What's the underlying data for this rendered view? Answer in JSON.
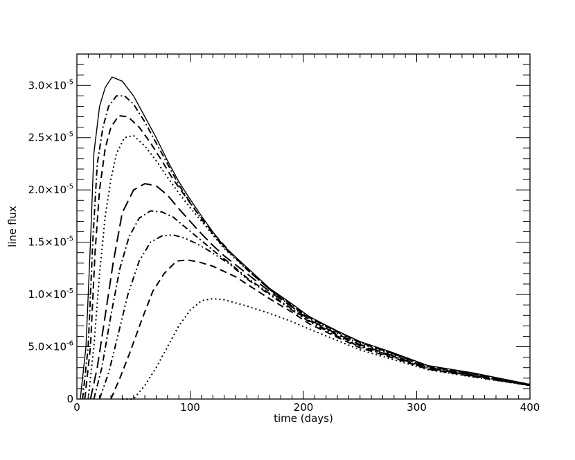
{
  "chart_data": {
    "type": "line",
    "title": "",
    "xlabel": "time (days)",
    "ylabel": "line flux",
    "xlim": [
      0,
      400
    ],
    "ylim": [
      0,
      3.3e-05
    ],
    "x_ticks": [
      "0",
      "100",
      "200",
      "300",
      "400"
    ],
    "y_ticks": [
      {
        "mantissa": "0",
        "exp": ""
      },
      {
        "mantissa": "5.0×10",
        "exp": "-6"
      },
      {
        "mantissa": "1.0×10",
        "exp": "-5"
      },
      {
        "mantissa": "1.5×10",
        "exp": "-5"
      },
      {
        "mantissa": "2.0×10",
        "exp": "-5"
      },
      {
        "mantissa": "2.5×10",
        "exp": "-5"
      },
      {
        "mantissa": "3.0×10",
        "exp": "-5"
      }
    ],
    "grid": false,
    "legend": "none",
    "line_color": "#000000",
    "series": [
      {
        "style": "solid",
        "points": [
          [
            3,
            0
          ],
          [
            8,
            5e-06
          ],
          [
            12,
            1.5e-05
          ],
          [
            15,
            2.35e-05
          ],
          [
            20,
            2.8e-05
          ],
          [
            25,
            2.98e-05
          ],
          [
            31,
            3.08e-05
          ],
          [
            40,
            3.04e-05
          ],
          [
            50,
            2.9e-05
          ],
          [
            60,
            2.7e-05
          ],
          [
            70,
            2.5e-05
          ],
          [
            80,
            2.28e-05
          ],
          [
            90,
            2.08e-05
          ],
          [
            100,
            1.91e-05
          ],
          [
            110,
            1.75e-05
          ],
          [
            120,
            1.6e-05
          ],
          [
            130,
            1.46e-05
          ],
          [
            150,
            1.26e-05
          ],
          [
            170,
            1.06e-05
          ],
          [
            190,
            9.1e-06
          ],
          [
            205,
            7.9e-06
          ],
          [
            230,
            6.5e-06
          ],
          [
            250,
            5.5e-06
          ],
          [
            280,
            4.4e-06
          ],
          [
            310,
            3.2e-06
          ],
          [
            350,
            2.5e-06
          ],
          [
            400,
            1.4e-06
          ]
        ]
      },
      {
        "style": "dashdot",
        "points": [
          [
            5,
            0
          ],
          [
            10,
            5e-06
          ],
          [
            14,
            1.5e-05
          ],
          [
            18,
            2.25e-05
          ],
          [
            23,
            2.6e-05
          ],
          [
            28,
            2.8e-05
          ],
          [
            35,
            2.9e-05
          ],
          [
            42,
            2.9e-05
          ],
          [
            50,
            2.82e-05
          ],
          [
            60,
            2.65e-05
          ],
          [
            70,
            2.45e-05
          ],
          [
            80,
            2.25e-05
          ],
          [
            90,
            2.05e-05
          ],
          [
            100,
            1.88e-05
          ],
          [
            110,
            1.72e-05
          ],
          [
            120,
            1.58e-05
          ],
          [
            130,
            1.45e-05
          ],
          [
            150,
            1.25e-05
          ],
          [
            170,
            1.05e-05
          ],
          [
            190,
            9e-06
          ],
          [
            205,
            7.8e-06
          ],
          [
            230,
            6.5e-06
          ],
          [
            250,
            5.4e-06
          ],
          [
            280,
            4.3e-06
          ],
          [
            310,
            3.15e-06
          ],
          [
            350,
            2.45e-06
          ],
          [
            400,
            1.4e-06
          ]
        ]
      },
      {
        "style": "dashed",
        "points": [
          [
            7,
            0
          ],
          [
            12,
            5e-06
          ],
          [
            16,
            1.4e-05
          ],
          [
            20,
            2e-05
          ],
          [
            25,
            2.4e-05
          ],
          [
            30,
            2.6e-05
          ],
          [
            37,
            2.71e-05
          ],
          [
            45,
            2.7e-05
          ],
          [
            55,
            2.6e-05
          ],
          [
            65,
            2.45e-05
          ],
          [
            75,
            2.28e-05
          ],
          [
            85,
            2.1e-05
          ],
          [
            95,
            1.95e-05
          ],
          [
            105,
            1.8e-05
          ],
          [
            115,
            1.66e-05
          ],
          [
            125,
            1.53e-05
          ],
          [
            135,
            1.41e-05
          ],
          [
            150,
            1.24e-05
          ],
          [
            170,
            1.05e-05
          ],
          [
            190,
            8.9e-06
          ],
          [
            205,
            7.8e-06
          ],
          [
            230,
            6.4e-06
          ],
          [
            250,
            5.4e-06
          ],
          [
            280,
            4.3e-06
          ],
          [
            310,
            3.1e-06
          ],
          [
            350,
            2.4e-06
          ],
          [
            400,
            1.35e-06
          ]
        ]
      },
      {
        "style": "dotted",
        "points": [
          [
            10,
            0
          ],
          [
            15,
            5e-06
          ],
          [
            20,
            1.2e-05
          ],
          [
            25,
            1.75e-05
          ],
          [
            30,
            2.1e-05
          ],
          [
            35,
            2.35e-05
          ],
          [
            42,
            2.5e-05
          ],
          [
            50,
            2.52e-05
          ],
          [
            60,
            2.42e-05
          ],
          [
            70,
            2.28e-05
          ],
          [
            80,
            2.12e-05
          ],
          [
            90,
            1.97e-05
          ],
          [
            100,
            1.83e-05
          ],
          [
            110,
            1.7e-05
          ],
          [
            120,
            1.57e-05
          ],
          [
            130,
            1.44e-05
          ],
          [
            150,
            1.24e-05
          ],
          [
            170,
            1.05e-05
          ],
          [
            190,
            8.8e-06
          ],
          [
            205,
            7.7e-06
          ],
          [
            230,
            6.3e-06
          ],
          [
            250,
            5.3e-06
          ],
          [
            280,
            4.2e-06
          ],
          [
            310,
            3.05e-06
          ],
          [
            350,
            2.35e-06
          ],
          [
            400,
            1.35e-06
          ]
        ]
      },
      {
        "style": "longdash",
        "points": [
          [
            12,
            0
          ],
          [
            18,
            3e-06
          ],
          [
            25,
            8e-06
          ],
          [
            32,
            1.3e-05
          ],
          [
            40,
            1.78e-05
          ],
          [
            50,
            2e-05
          ],
          [
            60,
            2.06e-05
          ],
          [
            70,
            2.04e-05
          ],
          [
            80,
            1.95e-05
          ],
          [
            90,
            1.82e-05
          ],
          [
            100,
            1.7e-05
          ],
          [
            110,
            1.58e-05
          ],
          [
            120,
            1.47e-05
          ],
          [
            130,
            1.37e-05
          ],
          [
            150,
            1.2e-05
          ],
          [
            170,
            1.03e-05
          ],
          [
            190,
            8.8e-06
          ],
          [
            205,
            7.6e-06
          ],
          [
            230,
            6.2e-06
          ],
          [
            250,
            5.2e-06
          ],
          [
            280,
            4.1e-06
          ],
          [
            310,
            3e-06
          ],
          [
            350,
            2.3e-06
          ],
          [
            400,
            1.3e-06
          ]
        ]
      },
      {
        "style": "dashdot",
        "points": [
          [
            15,
            0
          ],
          [
            22,
            3e-06
          ],
          [
            30,
            8e-06
          ],
          [
            38,
            1.25e-05
          ],
          [
            46,
            1.55e-05
          ],
          [
            55,
            1.73e-05
          ],
          [
            65,
            1.8e-05
          ],
          [
            75,
            1.79e-05
          ],
          [
            85,
            1.74e-05
          ],
          [
            95,
            1.65e-05
          ],
          [
            105,
            1.56e-05
          ],
          [
            115,
            1.47e-05
          ],
          [
            125,
            1.38e-05
          ],
          [
            135,
            1.3e-05
          ],
          [
            150,
            1.16e-05
          ],
          [
            170,
            1.01e-05
          ],
          [
            190,
            8.6e-06
          ],
          [
            205,
            7.5e-06
          ],
          [
            230,
            6.1e-06
          ],
          [
            250,
            5.1e-06
          ],
          [
            280,
            4.05e-06
          ],
          [
            310,
            2.95e-06
          ],
          [
            350,
            2.25e-06
          ],
          [
            400,
            1.3e-06
          ]
        ]
      },
      {
        "style": "dashdotdot",
        "points": [
          [
            20,
            0
          ],
          [
            28,
            2.5e-06
          ],
          [
            36,
            6e-06
          ],
          [
            45,
            1e-05
          ],
          [
            55,
            1.32e-05
          ],
          [
            65,
            1.5e-05
          ],
          [
            75,
            1.56e-05
          ],
          [
            85,
            1.57e-05
          ],
          [
            95,
            1.54e-05
          ],
          [
            105,
            1.49e-05
          ],
          [
            115,
            1.43e-05
          ],
          [
            125,
            1.36e-05
          ],
          [
            135,
            1.29e-05
          ],
          [
            150,
            1.15e-05
          ],
          [
            170,
            1e-05
          ],
          [
            190,
            8.5e-06
          ],
          [
            205,
            7.4e-06
          ],
          [
            230,
            6e-06
          ],
          [
            250,
            5e-06
          ],
          [
            280,
            4e-06
          ],
          [
            310,
            2.9e-06
          ],
          [
            350,
            2.2e-06
          ],
          [
            400,
            1.3e-06
          ]
        ]
      },
      {
        "style": "dashed",
        "points": [
          [
            30,
            0
          ],
          [
            38,
            2e-06
          ],
          [
            47,
            4.5e-06
          ],
          [
            57,
            7.5e-06
          ],
          [
            67,
            1.03e-05
          ],
          [
            77,
            1.2e-05
          ],
          [
            88,
            1.32e-05
          ],
          [
            98,
            1.33e-05
          ],
          [
            108,
            1.31e-05
          ],
          [
            120,
            1.27e-05
          ],
          [
            130,
            1.22e-05
          ],
          [
            140,
            1.17e-05
          ],
          [
            150,
            1.1e-05
          ],
          [
            170,
            9.6e-06
          ],
          [
            190,
            8.3e-06
          ],
          [
            205,
            7.2e-06
          ],
          [
            230,
            5.9e-06
          ],
          [
            250,
            4.9e-06
          ],
          [
            280,
            3.9e-06
          ],
          [
            310,
            2.85e-06
          ],
          [
            350,
            2.15e-06
          ],
          [
            400,
            1.3e-06
          ]
        ]
      },
      {
        "style": "dotted",
        "points": [
          [
            40,
            0
          ],
          [
            50,
            0
          ],
          [
            60,
            1.3e-06
          ],
          [
            70,
            3e-06
          ],
          [
            80,
            5e-06
          ],
          [
            90,
            7e-06
          ],
          [
            100,
            8.5e-06
          ],
          [
            110,
            9.4e-06
          ],
          [
            120,
            9.6e-06
          ],
          [
            130,
            9.5e-06
          ],
          [
            140,
            9.2e-06
          ],
          [
            150,
            8.9e-06
          ],
          [
            170,
            8.2e-06
          ],
          [
            190,
            7.4e-06
          ],
          [
            205,
            6.7e-06
          ],
          [
            230,
            5.6e-06
          ],
          [
            250,
            4.7e-06
          ],
          [
            280,
            3.75e-06
          ],
          [
            310,
            2.8e-06
          ],
          [
            350,
            2.1e-06
          ],
          [
            400,
            1.3e-06
          ]
        ]
      }
    ]
  }
}
